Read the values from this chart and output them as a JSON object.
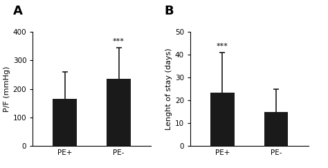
{
  "panel_A": {
    "label": "A",
    "categories": [
      "PE+",
      "PE-"
    ],
    "values": [
      165,
      237
    ],
    "errors_upper": [
      95,
      108
    ],
    "errors_lower": [
      65,
      85
    ],
    "ylabel": "P/F (mmHg)",
    "ylim": [
      0,
      400
    ],
    "yticks": [
      0,
      100,
      200,
      300,
      400
    ],
    "significance": {
      "bar_index": 1,
      "text": "***"
    }
  },
  "panel_B": {
    "label": "B",
    "categories": [
      "PE+",
      "PE-"
    ],
    "values": [
      23.5,
      15
    ],
    "errors_upper": [
      17.5,
      10
    ],
    "errors_lower": [
      13,
      5
    ],
    "ylabel": "Lenght of stay (days)",
    "ylim": [
      0,
      50
    ],
    "yticks": [
      0,
      10,
      20,
      30,
      40,
      50
    ],
    "significance": {
      "bar_index": 0,
      "text": "***"
    }
  },
  "bar_color": "#1a1a1a",
  "bar_width": 0.45,
  "error_capsize": 3,
  "error_linewidth": 1.2,
  "error_color": "#1a1a1a",
  "tick_fontsize": 7.5,
  "label_fontsize": 8,
  "panel_label_fontsize": 13,
  "sig_fontsize": 8,
  "background_color": "#ffffff"
}
